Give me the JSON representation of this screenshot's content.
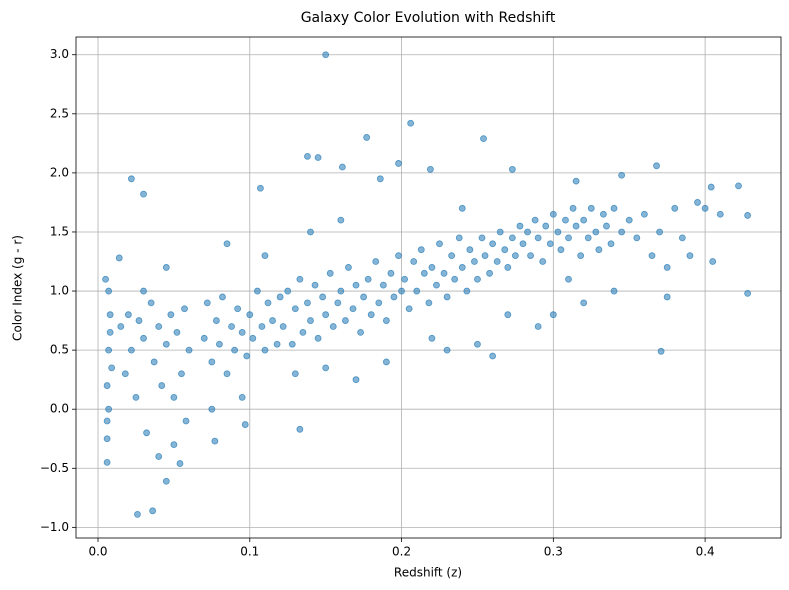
{
  "chart_data": {
    "type": "scatter",
    "title": "Galaxy Color Evolution with Redshift",
    "x_label": "Redshift (z)",
    "y_label": "Color Index (g - r)",
    "xlim": [
      -0.0145,
      0.45
    ],
    "ylim": [
      -1.09,
      3.15
    ],
    "xticks": [
      {
        "value": 0,
        "label": "0.0"
      },
      {
        "value": 0.1,
        "label": "0.1"
      },
      {
        "value": 0.2,
        "label": "0.2"
      },
      {
        "value": 0.3,
        "label": "0.3"
      },
      {
        "value": 0.4,
        "label": "0.4"
      }
    ],
    "yticks": [
      {
        "value": -1,
        "label": "−1.0"
      },
      {
        "value": -0.5,
        "label": "−0.5"
      },
      {
        "value": 0,
        "label": "0.0"
      },
      {
        "value": 0.5,
        "label": "0.5"
      },
      {
        "value": 1,
        "label": "1.0"
      },
      {
        "value": 1.5,
        "label": "1.5"
      },
      {
        "value": 2,
        "label": "2.0"
      },
      {
        "value": 2.5,
        "label": "2.5"
      },
      {
        "value": 3,
        "label": "3.0"
      }
    ],
    "grid": true,
    "series": [
      {
        "color": "#1f77b4",
        "x": [
          0.15,
          0.206,
          0.177,
          0.254,
          0.138,
          0.145,
          0.161,
          0.198,
          0.219,
          0.273,
          0.022,
          0.03,
          0.107,
          0.368,
          0.404,
          0.422,
          0.428,
          0.428,
          0.371,
          0.026,
          0.036,
          0.045,
          0.006,
          0.054,
          0.014,
          0.186,
          0.345,
          0.315,
          0.133,
          0.097,
          0.077,
          0.006,
          0.007,
          0.006,
          0.008,
          0.005,
          0.007,
          0.009,
          0.006,
          0.008,
          0.007,
          0.015,
          0.018,
          0.02,
          0.022,
          0.025,
          0.027,
          0.03,
          0.032,
          0.035,
          0.037,
          0.04,
          0.042,
          0.045,
          0.048,
          0.05,
          0.052,
          0.055,
          0.057,
          0.06,
          0.058,
          0.05,
          0.04,
          0.03,
          0.045,
          0.07,
          0.072,
          0.075,
          0.078,
          0.08,
          0.082,
          0.085,
          0.088,
          0.09,
          0.092,
          0.095,
          0.098,
          0.1,
          0.102,
          0.105,
          0.108,
          0.11,
          0.112,
          0.115,
          0.118,
          0.12,
          0.085,
          0.095,
          0.11,
          0.075,
          0.122,
          0.125,
          0.128,
          0.13,
          0.133,
          0.135,
          0.138,
          0.14,
          0.143,
          0.145,
          0.148,
          0.15,
          0.153,
          0.155,
          0.158,
          0.16,
          0.163,
          0.165,
          0.168,
          0.17,
          0.173,
          0.175,
          0.178,
          0.18,
          0.183,
          0.185,
          0.188,
          0.19,
          0.193,
          0.195,
          0.198,
          0.2,
          0.15,
          0.17,
          0.14,
          0.16,
          0.19,
          0.13,
          0.202,
          0.205,
          0.208,
          0.21,
          0.213,
          0.215,
          0.218,
          0.22,
          0.223,
          0.225,
          0.228,
          0.23,
          0.233,
          0.235,
          0.238,
          0.24,
          0.243,
          0.245,
          0.248,
          0.25,
          0.253,
          0.255,
          0.258,
          0.26,
          0.263,
          0.265,
          0.268,
          0.27,
          0.273,
          0.275,
          0.278,
          0.28,
          0.22,
          0.25,
          0.26,
          0.24,
          0.23,
          0.27,
          0.283,
          0.285,
          0.288,
          0.29,
          0.293,
          0.295,
          0.298,
          0.3,
          0.303,
          0.305,
          0.308,
          0.31,
          0.313,
          0.315,
          0.318,
          0.32,
          0.323,
          0.325,
          0.328,
          0.33,
          0.333,
          0.335,
          0.338,
          0.34,
          0.345,
          0.35,
          0.355,
          0.36,
          0.3,
          0.32,
          0.34,
          0.29,
          0.31,
          0.365,
          0.37,
          0.375,
          0.38,
          0.385,
          0.39,
          0.395,
          0.4,
          0.405,
          0.41,
          0.375
        ],
        "values": [
          3.0,
          2.42,
          2.3,
          2.29,
          2.14,
          2.13,
          2.05,
          2.08,
          2.03,
          2.03,
          1.95,
          1.82,
          1.87,
          2.06,
          1.88,
          1.89,
          1.64,
          0.98,
          0.49,
          -0.89,
          -0.86,
          -0.61,
          -0.45,
          -0.46,
          1.28,
          1.95,
          1.98,
          1.93,
          -0.17,
          -0.13,
          -0.27,
          0.2,
          0.5,
          -0.1,
          0.8,
          1.1,
          0.0,
          0.35,
          -0.25,
          0.65,
          1.0,
          0.7,
          0.3,
          0.8,
          0.5,
          0.1,
          0.75,
          0.6,
          -0.2,
          0.9,
          0.4,
          0.7,
          0.2,
          0.55,
          0.8,
          0.1,
          0.65,
          0.3,
          0.85,
          0.5,
          -0.1,
          -0.3,
          -0.4,
          1.0,
          1.2,
          0.6,
          0.9,
          0.4,
          0.75,
          0.55,
          0.95,
          0.3,
          0.7,
          0.5,
          0.85,
          0.65,
          0.45,
          0.8,
          0.6,
          1.0,
          0.7,
          0.5,
          0.9,
          0.75,
          0.55,
          0.95,
          1.4,
          0.1,
          1.3,
          0.0,
          0.7,
          1.0,
          0.55,
          0.85,
          1.1,
          0.65,
          0.9,
          0.75,
          1.05,
          0.6,
          0.95,
          0.8,
          1.15,
          0.7,
          0.9,
          1.0,
          0.75,
          1.2,
          0.85,
          1.05,
          0.65,
          0.95,
          1.1,
          0.8,
          1.25,
          0.9,
          1.05,
          0.75,
          1.15,
          0.95,
          1.3,
          1.0,
          0.35,
          0.25,
          1.5,
          1.6,
          0.4,
          0.3,
          1.1,
          0.85,
          1.25,
          1.0,
          1.35,
          1.15,
          0.9,
          1.2,
          1.05,
          1.4,
          1.15,
          0.95,
          1.3,
          1.1,
          1.45,
          1.2,
          1.0,
          1.35,
          1.25,
          1.1,
          1.45,
          1.3,
          1.15,
          1.4,
          1.25,
          1.5,
          1.35,
          1.2,
          1.45,
          1.3,
          1.55,
          1.4,
          0.6,
          0.55,
          0.45,
          1.7,
          0.5,
          0.8,
          1.5,
          1.3,
          1.6,
          1.45,
          1.25,
          1.55,
          1.4,
          1.65,
          1.5,
          1.35,
          1.6,
          1.45,
          1.7,
          1.55,
          1.3,
          1.6,
          1.45,
          1.7,
          1.5,
          1.35,
          1.65,
          1.55,
          1.4,
          1.7,
          1.5,
          1.6,
          1.45,
          1.65,
          0.8,
          0.9,
          1.0,
          0.7,
          1.1,
          1.3,
          1.5,
          1.2,
          1.7,
          1.45,
          1.3,
          1.75,
          1.7,
          1.25,
          1.65,
          0.95
        ]
      }
    ]
  }
}
